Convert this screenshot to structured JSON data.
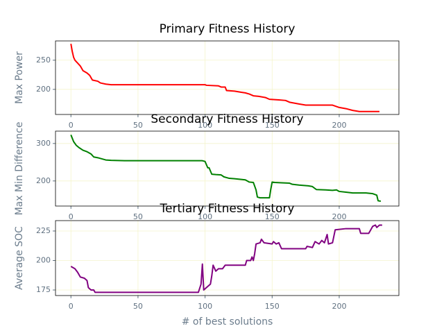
{
  "chart_data": [
    {
      "type": "line",
      "title": "Primary Fitness History",
      "ylabel": "Max Power",
      "color": "#ff0000",
      "grid": true,
      "xlim": [
        -11.5,
        244.5
      ],
      "xticks": [
        0,
        50,
        100,
        150,
        200
      ],
      "ylim": [
        157,
        283
      ],
      "yticks": [
        200,
        250
      ],
      "x": [
        0,
        1,
        2,
        3,
        5,
        7,
        9,
        12,
        14,
        16,
        20,
        22,
        26,
        30,
        100,
        101,
        110,
        112,
        115,
        116,
        122,
        127,
        130,
        133,
        136,
        140,
        145,
        148,
        155,
        160,
        163,
        170,
        175,
        195,
        200,
        205,
        210,
        215,
        230
      ],
      "values": [
        278,
        265,
        255,
        250,
        245,
        240,
        232,
        228,
        224,
        216,
        214,
        211,
        209,
        208,
        208,
        207,
        206,
        204,
        204,
        198,
        197,
        195,
        194,
        192,
        189,
        188,
        186,
        183,
        182,
        181,
        178,
        175,
        173,
        173,
        169,
        167,
        164,
        162,
        162
      ]
    },
    {
      "type": "line",
      "title": "Secondary Fitness History",
      "ylabel": "Max Min Difference",
      "color": "#008000",
      "grid": true,
      "xlim": [
        -11.5,
        244.5
      ],
      "xticks": [
        0,
        50,
        100,
        150,
        200
      ],
      "ylim": [
        133,
        333
      ],
      "yticks": [
        200,
        300
      ],
      "x": [
        0,
        2,
        4,
        6,
        9,
        12,
        15,
        17,
        20,
        23,
        26,
        30,
        40,
        98,
        100,
        102,
        103,
        105,
        108,
        112,
        114,
        118,
        122,
        127,
        130,
        133,
        136,
        138,
        139,
        141,
        148,
        149,
        150,
        152,
        157,
        163,
        165,
        170,
        177,
        180,
        183,
        190,
        195,
        198,
        200,
        205,
        210,
        220,
        225,
        228,
        229,
        231
      ],
      "values": [
        323,
        305,
        295,
        289,
        282,
        278,
        272,
        264,
        262,
        259,
        256,
        255,
        254,
        254,
        252,
        235,
        235,
        218,
        217,
        216,
        211,
        207,
        206,
        204,
        203,
        197,
        196,
        176,
        157,
        155,
        155,
        178,
        197,
        196,
        195,
        194,
        191,
        189,
        187,
        185,
        177,
        176,
        175,
        176,
        172,
        170,
        168,
        168,
        166,
        162,
        147,
        146
      ]
    },
    {
      "type": "line",
      "title": "Tertiary Fitness History",
      "ylabel": "Average SOC",
      "xlabel": "# of best solutions",
      "color": "#800080",
      "grid": true,
      "xlim": [
        -11.5,
        244.5
      ],
      "xticks": [
        0,
        50,
        100,
        150,
        200
      ],
      "ylim": [
        170.3,
        233.8
      ],
      "yticks": [
        175,
        200,
        225
      ],
      "x": [
        0,
        3,
        5,
        7,
        10,
        12,
        13,
        15,
        17,
        18,
        20,
        95,
        97,
        98,
        99,
        102,
        104,
        105,
        106,
        108,
        110,
        113,
        115,
        130,
        131,
        134,
        135,
        136,
        137,
        138,
        141,
        142,
        144,
        150,
        151,
        153,
        155,
        157,
        165,
        175,
        176,
        180,
        182,
        185,
        187,
        189,
        191,
        192,
        195,
        197,
        205,
        215,
        216,
        222,
        223,
        225,
        227,
        228,
        230,
        232
      ],
      "values": [
        195,
        193,
        190,
        186,
        185,
        183,
        177,
        175,
        175,
        173,
        173,
        173,
        180,
        197,
        175,
        178,
        180,
        187,
        196,
        191,
        193,
        193,
        196,
        196,
        200,
        200,
        203,
        200,
        206,
        214,
        215,
        218,
        215,
        214,
        216,
        214,
        215,
        210,
        210,
        210,
        212,
        211,
        216,
        214,
        217,
        215,
        222,
        214,
        215,
        226,
        227,
        227,
        223,
        223,
        225,
        229,
        230,
        228,
        230,
        230
      ]
    }
  ]
}
